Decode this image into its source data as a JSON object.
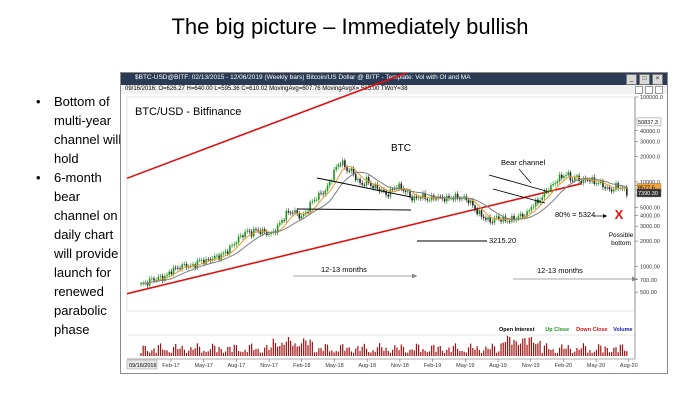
{
  "slide": {
    "title": "The big picture – Immediately bullish",
    "bullets": [
      "Bottom of multi-year channel will hold",
      "6-month bear channel on daily chart will provide launch for renewed parabolic phase"
    ]
  },
  "window": {
    "title": "$BTC-USD@BITF: 02/13/2015 - 12/06/2019 (Weekly bars)  Bitcoin/US Dollar @ BITF  -  Template: Vol with OI and MA",
    "info": "09/16/2016:  O=626.27  H=640.00  L=595.36  C=610.02  MovingAvg=607.76  MovingAvgX= 585.00  TWoY=38",
    "info_right": "12/6/19 11:39 = 7390.30 (-406.30)",
    "buttons": [
      "_",
      "□",
      "×"
    ]
  },
  "chart_data": {
    "type": "candlestick",
    "title": "BTC/USD - Bitfinance",
    "subtitle": "BTC",
    "ylabel": "",
    "yscale": "log",
    "ylim": [
      300,
      100000
    ],
    "y_ticks": [
      {
        "value": 100000,
        "label": "100000.0"
      },
      {
        "value": 40000,
        "label": "40000.0"
      },
      {
        "value": 30000,
        "label": "30000.0"
      },
      {
        "value": 20000,
        "label": "20000.0"
      },
      {
        "value": 10000,
        "label": "10000.0"
      },
      {
        "value": 9000,
        "label": "9000.0"
      },
      {
        "value": 8000,
        "label": "8000.0"
      },
      {
        "value": 7000,
        "label": "7000.0"
      },
      {
        "value": 5000,
        "label": "5000.00"
      },
      {
        "value": 4000,
        "label": "4000.00"
      },
      {
        "value": 3000,
        "label": "3000.00"
      },
      {
        "value": 2000,
        "label": "2000.00"
      },
      {
        "value": 1000,
        "label": "1000.00"
      },
      {
        "value": 700,
        "label": "700.00"
      },
      {
        "value": 500,
        "label": "500.00"
      }
    ],
    "price_tags": [
      {
        "value": 50837,
        "label": "50837.3"
      },
      {
        "value": 8577,
        "label": "8577.6"
      },
      {
        "value": 7390,
        "label": "7390.30"
      }
    ],
    "x_ticks": [
      "Feb-17",
      "May-17",
      "Aug-17",
      "Nov-17",
      "Feb-18",
      "May-18",
      "Aug-18",
      "Nov-18",
      "Feb-19",
      "May-19",
      "Aug-19",
      "Nov-19",
      "Feb-20",
      "May-20",
      "Aug-20"
    ],
    "x_start_label": "09/16/2016",
    "closes": [
      610,
      640,
      700,
      720,
      740,
      760,
      900,
      950,
      1000,
      1050,
      980,
      1100,
      1200,
      1150,
      1250,
      1300,
      1350,
      1500,
      1700,
      2000,
      2300,
      2600,
      2500,
      2700,
      2600,
      2500,
      2400,
      2800,
      3400,
      4200,
      4500,
      4300,
      3800,
      4400,
      5700,
      6500,
      7300,
      8000,
      11000,
      15000,
      17500,
      14000,
      13500,
      11000,
      9000,
      10500,
      9000,
      8500,
      8000,
      7000,
      7800,
      9000,
      8500,
      7500,
      6500,
      6300,
      7000,
      6200,
      6400,
      6600,
      6400,
      6300,
      6500,
      6600,
      6400,
      6300,
      5500,
      4500,
      4000,
      3600,
      3400,
      3800,
      3600,
      3500,
      3600,
      3800,
      4000,
      4100,
      5200,
      5700,
      6500,
      8000,
      8800,
      10500,
      11500,
      12500,
      10500,
      11400,
      10000,
      10800,
      10300,
      9800,
      9500,
      8200,
      8000,
      9000,
      8600,
      7400
    ],
    "moving_averages": [
      {
        "name": "MovingAvg",
        "color": "#e69a2e"
      },
      {
        "name": "MovingAvgX",
        "color": "#7f7f7f"
      }
    ],
    "volume_legend": [
      {
        "label": "Open Interest",
        "color": "#000000"
      },
      {
        "label": "Up Close",
        "color": "#1a9a1a"
      },
      {
        "label": "Down Close",
        "color": "#e01010"
      },
      {
        "label": "Volume",
        "color": "#1a1aa8"
      }
    ],
    "annotations": {
      "bear_channel": "Bear channel",
      "support": "3215.20",
      "months_left": "12-13 months",
      "months_right": "12-13 months",
      "target": "80% = 5324",
      "x_mark": "X",
      "possible_bottom": "Possible bottom"
    },
    "colors": {
      "channel": "#e01010",
      "candle_up": "#1a9a1a",
      "candle_down": "#222222",
      "x_mark": "#e01010",
      "volume": "#a01010"
    }
  }
}
